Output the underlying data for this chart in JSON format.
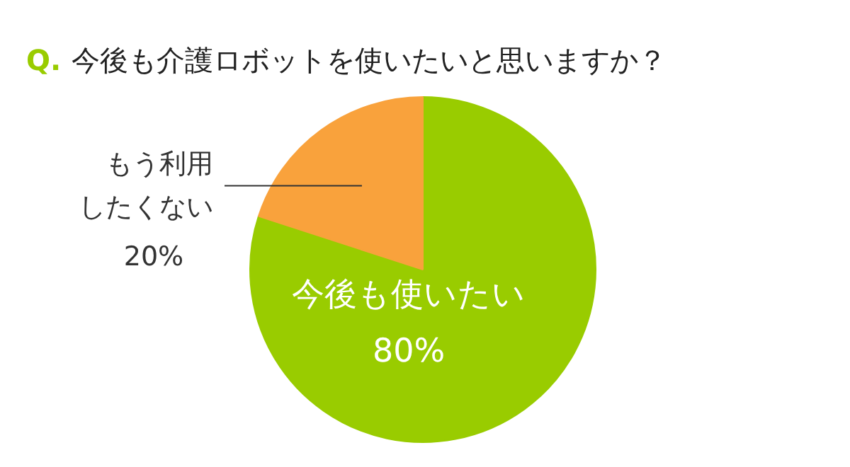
{
  "chart_data": {
    "type": "pie",
    "title": "Q. 今後も介護ロボットを使いたいと思いますか？",
    "categories": [
      "今後も使いたい",
      "もう利用したくない"
    ],
    "values": [
      80,
      20
    ],
    "colors": [
      "#99cc00",
      "#f9a23c"
    ],
    "value_labels": [
      "80%",
      "20%"
    ]
  }
}
